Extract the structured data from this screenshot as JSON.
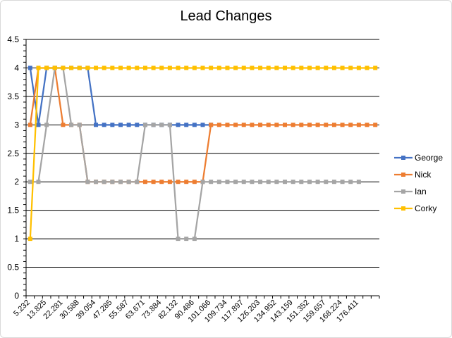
{
  "chart_data": {
    "type": "line",
    "title": "Lead Changes",
    "xlabel": "",
    "ylabel": "",
    "ylim": [
      0,
      4.5
    ],
    "yticks": [
      "0",
      "0.5",
      "1",
      "1.5",
      "2",
      "2.5",
      "3",
      "3.5",
      "4",
      "4.5"
    ],
    "grid": true,
    "legend_position": "right",
    "x_tick_labels": [
      "5.232",
      "13.825",
      "22.281",
      "30.588",
      "39.054",
      "47.285",
      "55.587",
      "63.671",
      "73.884",
      "82.132",
      "90.486",
      "101.066",
      "109.734",
      "117.897",
      "126.203",
      "134.952",
      "143.159",
      "151.352",
      "159.657",
      "168.224",
      "176.411"
    ],
    "x_count": 43,
    "series": [
      {
        "name": "George",
        "color": "#4472C4",
        "values": [
          4,
          3,
          4,
          4,
          4,
          4,
          4,
          4,
          3,
          3,
          3,
          3,
          3,
          3,
          3,
          3,
          3,
          3,
          3,
          3,
          3,
          3,
          3
        ]
      },
      {
        "name": "Nick",
        "color": "#ED7D31",
        "values": [
          3,
          4,
          4,
          4,
          3,
          3,
          3,
          2,
          2,
          2,
          2,
          2,
          2,
          2,
          2,
          2,
          2,
          2,
          2,
          2,
          2,
          2,
          3,
          3,
          3,
          3,
          3,
          3,
          3,
          3,
          3,
          3,
          3,
          3,
          3,
          3,
          3,
          3,
          3,
          3,
          3,
          3,
          3
        ]
      },
      {
        "name": "Ian",
        "color": "#A5A5A5",
        "values": [
          2,
          2,
          3,
          4,
          4,
          3,
          3,
          2,
          2,
          2,
          2,
          2,
          2,
          2,
          3,
          3,
          3,
          3,
          1,
          1,
          1,
          2,
          2,
          2,
          2,
          2,
          2,
          2,
          2,
          2,
          2,
          2,
          2,
          2,
          2,
          2,
          2,
          2,
          2,
          2,
          2
        ]
      },
      {
        "name": "Corky",
        "color": "#FFC000",
        "values": [
          1,
          4,
          4,
          4,
          4,
          4,
          4,
          4,
          4,
          4,
          4,
          4,
          4,
          4,
          4,
          4,
          4,
          4,
          4,
          4,
          4,
          4,
          4,
          4,
          4,
          4,
          4,
          4,
          4,
          4,
          4,
          4,
          4,
          4,
          4,
          4,
          4,
          4,
          4,
          4,
          4,
          4,
          4
        ]
      }
    ]
  }
}
